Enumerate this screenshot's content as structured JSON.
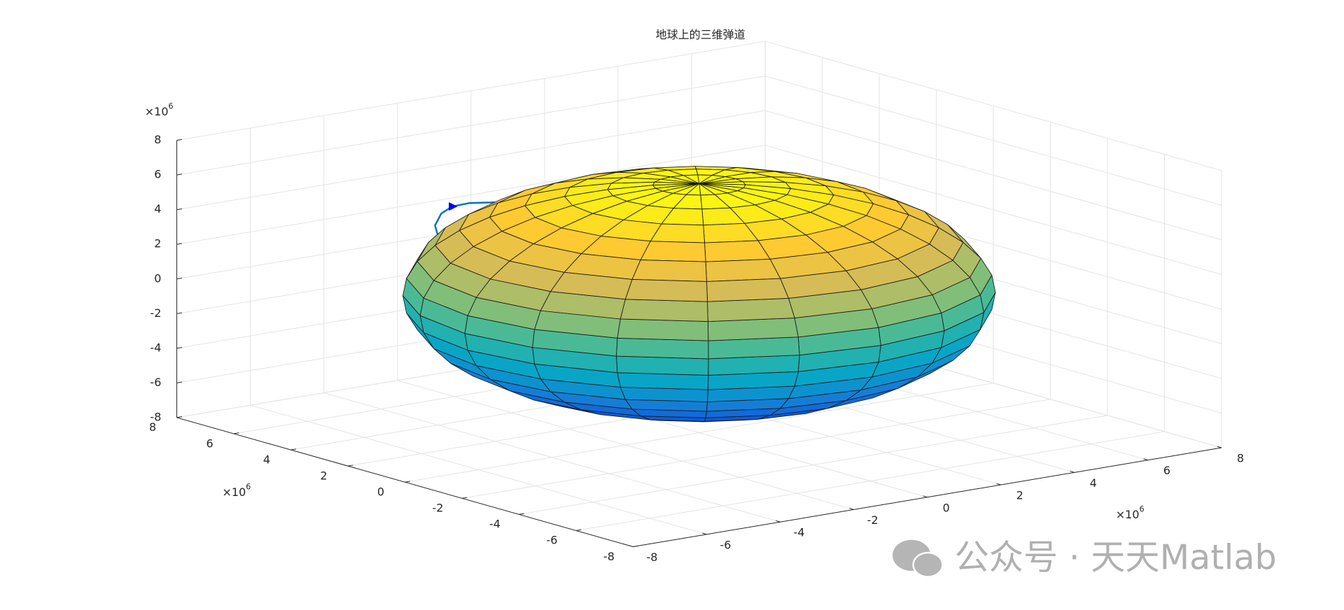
{
  "chart_data": {
    "type": "surface3d",
    "title": "地球上的三维弹道",
    "xlim": [
      -8,
      8
    ],
    "ylim": [
      -8,
      8
    ],
    "zlim": [
      -8,
      8
    ],
    "xticks": [
      -8,
      -6,
      -4,
      -2,
      0,
      2,
      4,
      6,
      8
    ],
    "yticks": [
      -8,
      -6,
      -4,
      -2,
      0,
      2,
      4,
      6,
      8
    ],
    "zticks": [
      -8,
      -6,
      -4,
      -2,
      0,
      2,
      4,
      6,
      8
    ],
    "axis_multiplier": {
      "base": "×10",
      "power": "6"
    },
    "grid": true,
    "colormap": "parula",
    "sphere_radius": 6.37,
    "mesh": 20,
    "trajectory": {
      "color": "#0072bd",
      "x": [
        -3.61,
        -3.96,
        -4.08,
        -3.91,
        -3.61,
        -3.14,
        -2.44
      ],
      "y": [
        4,
        4,
        4,
        4,
        4,
        4,
        4
      ],
      "z": [
        1.64,
        2.61,
        3.55,
        4.18,
        4.48,
        4.51,
        4.3
      ],
      "marker": {
        "x": -3.61,
        "y": 4,
        "z": 4.48,
        "color": "#0000ff"
      }
    }
  },
  "watermark": "公众号 · 天天Matlab"
}
